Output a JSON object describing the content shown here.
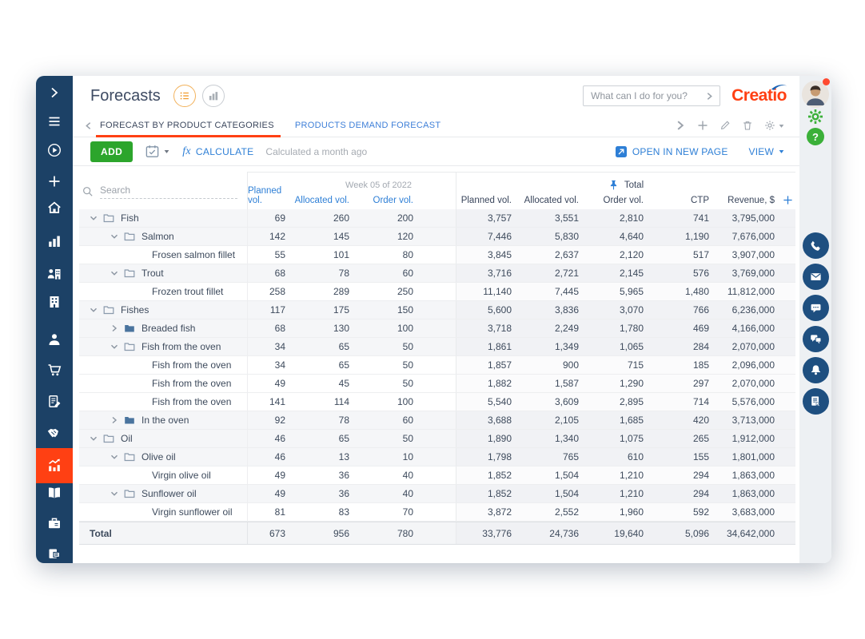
{
  "header": {
    "title": "Forecasts",
    "search_placeholder": "What can I do for you?",
    "logo_text": "Creatio",
    "view_toggles": [
      "list-view",
      "chart-view"
    ],
    "active_view": "list-view"
  },
  "tabs": {
    "items": [
      {
        "label": "FORECAST BY PRODUCT CATEGORIES",
        "active": true
      },
      {
        "label": "PRODUCTS DEMAND FORECAST",
        "active": false
      }
    ],
    "action_icons": [
      "forward-chevron",
      "add",
      "edit",
      "delete",
      "data-settings"
    ]
  },
  "toolbar": {
    "add_label": "ADD",
    "calendar_icon": "calendar-check",
    "fx_symbol": "fx",
    "calculate_label": "CALCULATE",
    "status_note": "Calculated a month ago",
    "open_in_new_page_label": "OPEN IN NEW PAGE",
    "view_label": "VIEW"
  },
  "table": {
    "search_placeholder": "Search",
    "groups": {
      "week": "Week 05 of 2022",
      "total": "Total",
      "total_pin_icon": "pin"
    },
    "week_columns": [
      "Planned vol.",
      "Allocated vol.",
      "Order vol."
    ],
    "total_columns": [
      "Planned vol.",
      "Allocated vol.",
      "Order vol.",
      "CTP",
      "Revenue, $"
    ],
    "add_column_icon": "plus",
    "rows": [
      {
        "name": "Fish",
        "level": 0,
        "type": "category",
        "expanded": true,
        "week": [
          "69",
          "260",
          "200"
        ],
        "total": [
          "3,757",
          "3,551",
          "2,810",
          "741",
          "3,795,000"
        ]
      },
      {
        "name": "Salmon",
        "level": 1,
        "type": "category",
        "expanded": true,
        "week": [
          "142",
          "145",
          "120"
        ],
        "total": [
          "7,446",
          "5,830",
          "4,640",
          "1,190",
          "7,676,000"
        ]
      },
      {
        "name": "Frosen salmon fillet",
        "level": 2,
        "type": "product",
        "week": [
          "55",
          "101",
          "80"
        ],
        "total": [
          "3,845",
          "2,637",
          "2,120",
          "517",
          "3,907,000"
        ]
      },
      {
        "name": "Trout",
        "level": 1,
        "type": "category",
        "expanded": true,
        "week": [
          "68",
          "78",
          "60"
        ],
        "total": [
          "3,716",
          "2,721",
          "2,145",
          "576",
          "3,769,000"
        ]
      },
      {
        "name": "Frozen trout fillet",
        "level": 2,
        "type": "product",
        "week": [
          "258",
          "289",
          "250"
        ],
        "total": [
          "11,140",
          "7,445",
          "5,965",
          "1,480",
          "11,812,000"
        ]
      },
      {
        "name": "Fishes",
        "level": 0,
        "type": "category",
        "expanded": true,
        "week": [
          "117",
          "175",
          "150"
        ],
        "total": [
          "5,600",
          "3,836",
          "3,070",
          "766",
          "6,236,000"
        ]
      },
      {
        "name": "Breaded fish",
        "level": 1,
        "type": "category",
        "expanded": false,
        "week": [
          "68",
          "130",
          "100"
        ],
        "total": [
          "3,718",
          "2,249",
          "1,780",
          "469",
          "4,166,000"
        ]
      },
      {
        "name": "Fish from the oven",
        "level": 1,
        "type": "category",
        "expanded": true,
        "week": [
          "34",
          "65",
          "50"
        ],
        "total": [
          "1,861",
          "1,349",
          "1,065",
          "284",
          "2,070,000"
        ]
      },
      {
        "name": "Fish from the oven",
        "level": 2,
        "type": "product",
        "week": [
          "34",
          "65",
          "50"
        ],
        "total": [
          "1,857",
          "900",
          "715",
          "185",
          "2,096,000"
        ]
      },
      {
        "name": "Fish from the oven",
        "level": 2,
        "type": "product",
        "week": [
          "49",
          "45",
          "50"
        ],
        "total": [
          "1,882",
          "1,587",
          "1,290",
          "297",
          "2,070,000"
        ]
      },
      {
        "name": "Fish from the oven",
        "level": 2,
        "type": "product",
        "week": [
          "141",
          "114",
          "100"
        ],
        "total": [
          "5,540",
          "3,609",
          "2,895",
          "714",
          "5,576,000"
        ]
      },
      {
        "name": "In the oven",
        "level": 1,
        "type": "category",
        "expanded": false,
        "week": [
          "92",
          "78",
          "60"
        ],
        "total": [
          "3,688",
          "2,105",
          "1,685",
          "420",
          "3,713,000"
        ]
      },
      {
        "name": "Oil",
        "level": 0,
        "type": "category",
        "expanded": true,
        "week": [
          "46",
          "65",
          "50"
        ],
        "total": [
          "1,890",
          "1,340",
          "1,075",
          "265",
          "1,912,000"
        ]
      },
      {
        "name": "Olive oil",
        "level": 1,
        "type": "category",
        "expanded": true,
        "week": [
          "46",
          "13",
          "10"
        ],
        "total": [
          "1,798",
          "765",
          "610",
          "155",
          "1,801,000"
        ]
      },
      {
        "name": "Virgin olive oil",
        "level": 2,
        "type": "product",
        "week": [
          "49",
          "36",
          "40"
        ],
        "total": [
          "1,852",
          "1,504",
          "1,210",
          "294",
          "1,863,000"
        ]
      },
      {
        "name": "Sunflower oil",
        "level": 1,
        "type": "category",
        "expanded": true,
        "week": [
          "49",
          "36",
          "40"
        ],
        "total": [
          "1,852",
          "1,504",
          "1,210",
          "294",
          "1,863,000"
        ]
      },
      {
        "name": "Virgin sunflower oil",
        "level": 2,
        "type": "product",
        "week": [
          "81",
          "83",
          "70"
        ],
        "total": [
          "3,872",
          "2,552",
          "1,960",
          "592",
          "3,683,000"
        ]
      }
    ],
    "total_row": {
      "label": "Total",
      "week": [
        "673",
        "956",
        "780"
      ],
      "total": [
        "33,776",
        "24,736",
        "19,640",
        "5,096",
        "34,642,000"
      ]
    }
  },
  "side_nav": {
    "items": [
      {
        "icon": "expand"
      },
      {
        "icon": "menu"
      },
      {
        "icon": "process"
      },
      {
        "icon": "add"
      },
      {
        "icon": "home"
      },
      {
        "icon": "dashboards"
      },
      {
        "icon": "org-structure"
      },
      {
        "icon": "accounts"
      },
      {
        "icon": "contacts"
      },
      {
        "icon": "orders"
      },
      {
        "icon": "contracts"
      },
      {
        "icon": "opportunities"
      },
      {
        "icon": "forecasts",
        "active": true
      },
      {
        "icon": "knowledge-base"
      },
      {
        "icon": "projects"
      },
      {
        "icon": "documents"
      }
    ],
    "active_color": "#FF4013"
  },
  "right_rail": {
    "avatar": "user-avatar",
    "notification_dot_color": "#FF4A30",
    "settings_icon": "gear",
    "help_label": "?",
    "channel_icons": [
      "call",
      "email",
      "chat",
      "messenger",
      "notifications",
      "tasks"
    ]
  },
  "colors": {
    "sidebar": "#1C4166",
    "accent_orange": "#FF4013",
    "link_blue": "#2E7FD6",
    "add_green": "#2CA52C",
    "help_green": "#3BB039",
    "rail_circle": "#1E4F80"
  }
}
